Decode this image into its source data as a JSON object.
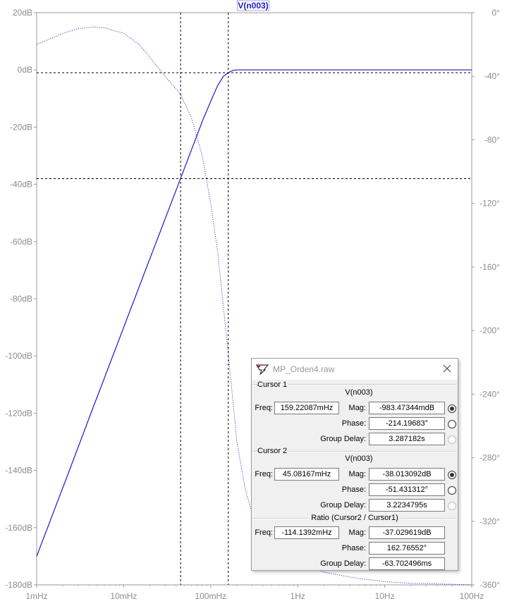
{
  "chart_data": {
    "type": "line",
    "title": "V(n003)",
    "x_scale": "log",
    "x_ticks": [
      "1mHz",
      "10mHz",
      "100mHz",
      "1Hz",
      "10Hz",
      "100Hz"
    ],
    "x_tick_values": [
      0.001,
      0.01,
      0.1,
      1,
      10,
      100
    ],
    "xlim": [
      0.001,
      100
    ],
    "y_left_ticks": [
      "20dB",
      "0dB",
      "-20dB",
      "-40dB",
      "-60dB",
      "-80dB",
      "-100dB",
      "-120dB",
      "-140dB",
      "-160dB",
      "-180dB"
    ],
    "y_left_values": [
      20,
      0,
      -20,
      -40,
      -60,
      -80,
      -100,
      -120,
      -140,
      -160,
      -180
    ],
    "ylim_left": [
      -180,
      20
    ],
    "y_right_ticks": [
      "0°",
      "-40°",
      "-80°",
      "-120°",
      "-160°",
      "-200°",
      "-240°",
      "-280°",
      "-320°",
      "-360°"
    ],
    "y_right_values": [
      0,
      -40,
      -80,
      -120,
      -160,
      -200,
      -240,
      -280,
      -320,
      -360
    ],
    "ylim_right": [
      -360,
      0
    ],
    "series": [
      {
        "name": "V(n003) magnitude",
        "axis": "left",
        "style": "solid",
        "color": "#1a1ac8",
        "x": [
          0.001,
          0.002,
          0.005,
          0.01,
          0.02,
          0.03,
          0.045,
          0.06,
          0.08,
          0.1,
          0.12,
          0.14,
          0.159,
          0.18,
          0.2,
          0.3,
          0.5,
          1,
          10,
          100
        ],
        "y": [
          -170,
          -146,
          -114,
          -90,
          -66,
          -52,
          -38,
          -28,
          -18,
          -11,
          -5.5,
          -2.2,
          -1,
          -0.2,
          0,
          0,
          0,
          0,
          0,
          0
        ]
      },
      {
        "name": "V(n003) phase",
        "axis": "right",
        "style": "dotted",
        "color": "#1a1ac8",
        "x": [
          0.001,
          0.002,
          0.003,
          0.0045,
          0.006,
          0.01,
          0.015,
          0.02,
          0.03,
          0.04,
          0.045,
          0.06,
          0.08,
          0.1,
          0.12,
          0.159,
          0.2,
          0.25,
          0.3,
          0.5,
          1,
          2,
          5,
          10,
          20,
          50,
          100
        ],
        "y": [
          -20,
          -13,
          -10,
          -9,
          -9.5,
          -13,
          -20,
          -28,
          -40,
          -48,
          -51.4,
          -66,
          -90,
          -120,
          -150,
          -214.2,
          -270,
          -300,
          -315,
          -333,
          -345,
          -352,
          -356,
          -358,
          -359,
          -359.5,
          -360
        ]
      }
    ],
    "cursors": [
      {
        "name": "Cursor 1",
        "x": 0.15922087,
        "y": -0.98347344
      },
      {
        "name": "Cursor 2",
        "x": 0.04508167,
        "y": -38.013092
      }
    ],
    "grid": false,
    "legend": "top-center"
  },
  "colors": {
    "trace": "#1a1ac8",
    "axis_text": "#8c8c8c",
    "cursor_line": "#000000"
  },
  "dialog": {
    "title": "MP_Orden4.raw",
    "icon": "ltspice-app-icon",
    "close_icon": "close-icon",
    "cursor1": {
      "label": "Cursor 1",
      "signal": "V(n003)",
      "freq_label": "Freq:",
      "freq": "159.22087mHz",
      "mag_label": "Mag:",
      "mag": "-983.47344mdB",
      "phase_label": "Phase:",
      "phase": "-214.19683°",
      "gd_label": "Group Delay:",
      "gd": "3.287182s"
    },
    "cursor2": {
      "label": "Cursor 2",
      "signal": "V(n003)",
      "freq_label": "Freq:",
      "freq": "45.08167mHz",
      "mag_label": "Mag:",
      "mag": "-38.013092dB",
      "phase_label": "Phase:",
      "phase": "-51.431312°",
      "gd_label": "Group Delay:",
      "gd": "3.2234795s"
    },
    "ratio": {
      "label": "Ratio (Cursor2 / Cursor1)",
      "freq_label": "Freq:",
      "freq": "-114.1392mHz",
      "mag_label": "Mag:",
      "mag": "-37.029619dB",
      "phase_label": "Phase:",
      "phase": "162.76552°",
      "gd_label": "Group Delay:",
      "gd": "-63.702496ms"
    }
  }
}
